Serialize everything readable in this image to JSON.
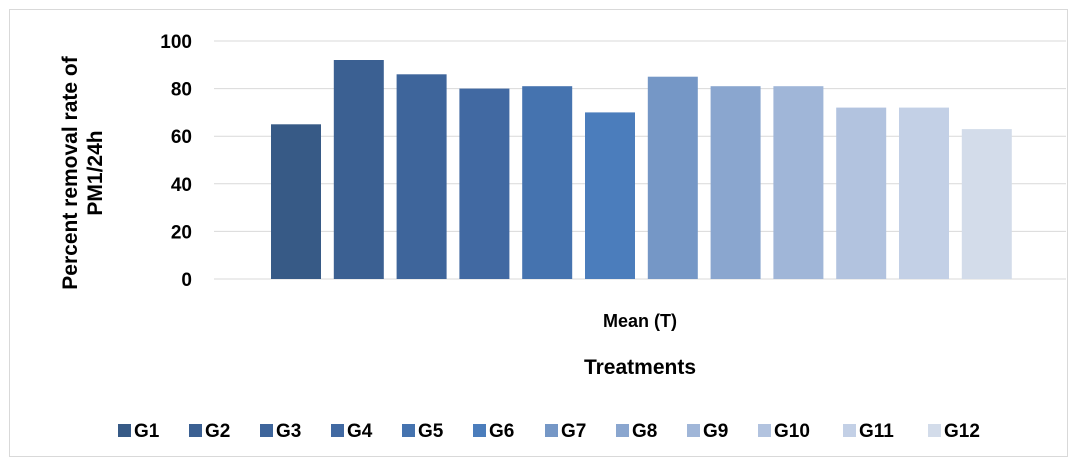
{
  "chart_data": {
    "type": "bar",
    "categories": [
      "Mean (T)"
    ],
    "series": [
      {
        "name": "G1",
        "values": [
          65
        ],
        "color": "#375a86"
      },
      {
        "name": "G2",
        "values": [
          92
        ],
        "color": "#3b6092"
      },
      {
        "name": "G3",
        "values": [
          86
        ],
        "color": "#3e659b"
      },
      {
        "name": "G4",
        "values": [
          80
        ],
        "color": "#4169a2"
      },
      {
        "name": "G5",
        "values": [
          81
        ],
        "color": "#4573af"
      },
      {
        "name": "G6",
        "values": [
          70
        ],
        "color": "#4b7dbc"
      },
      {
        "name": "G7",
        "values": [
          85
        ],
        "color": "#7597c6"
      },
      {
        "name": "G8",
        "values": [
          81
        ],
        "color": "#8aa6cf"
      },
      {
        "name": "G9",
        "values": [
          81
        ],
        "color": "#a0b6d8"
      },
      {
        "name": "G10",
        "values": [
          72
        ],
        "color": "#b2c3df"
      },
      {
        "name": "G11",
        "values": [
          72
        ],
        "color": "#c3d0e6"
      },
      {
        "name": "G12",
        "values": [
          63
        ],
        "color": "#d3dcea"
      }
    ],
    "xlabel": "Treatments",
    "ylabel": "Percent removal rate of PM1/24h",
    "ylabel_lines": [
      "Percent removal rate of",
      "PM1/24h"
    ],
    "ylim": [
      0,
      100
    ],
    "yticks": [
      0,
      20,
      40,
      60,
      80,
      100
    ],
    "grid": true,
    "legend": "bottom",
    "gridColor": "#d9d9d9"
  }
}
